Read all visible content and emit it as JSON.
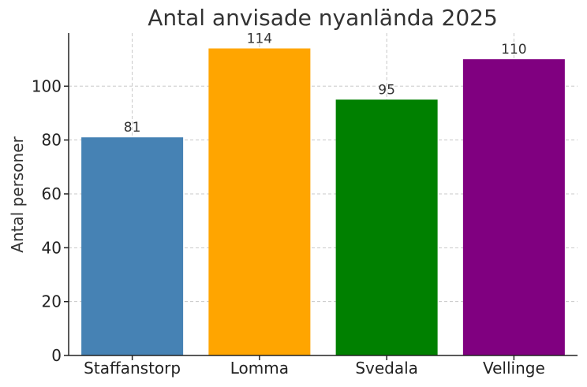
{
  "chart_data": {
    "type": "bar",
    "title": "Antal anvisade nyanlända 2025",
    "xlabel": "",
    "ylabel": "Antal personer",
    "categories": [
      "Staffanstorp",
      "Lomma",
      "Svedala",
      "Vellinge"
    ],
    "values": [
      81,
      114,
      95,
      110
    ],
    "colors": [
      "#4682b4",
      "#ffa500",
      "#008000",
      "#800080"
    ],
    "data_labels": [
      "81",
      "114",
      "95",
      "110"
    ],
    "yticks": [
      0,
      20,
      40,
      60,
      80,
      100
    ],
    "ytick_labels": [
      "0",
      "20",
      "40",
      "60",
      "80",
      "100"
    ],
    "ylim": [
      0,
      119.7
    ],
    "grid": true,
    "legend": "none"
  }
}
